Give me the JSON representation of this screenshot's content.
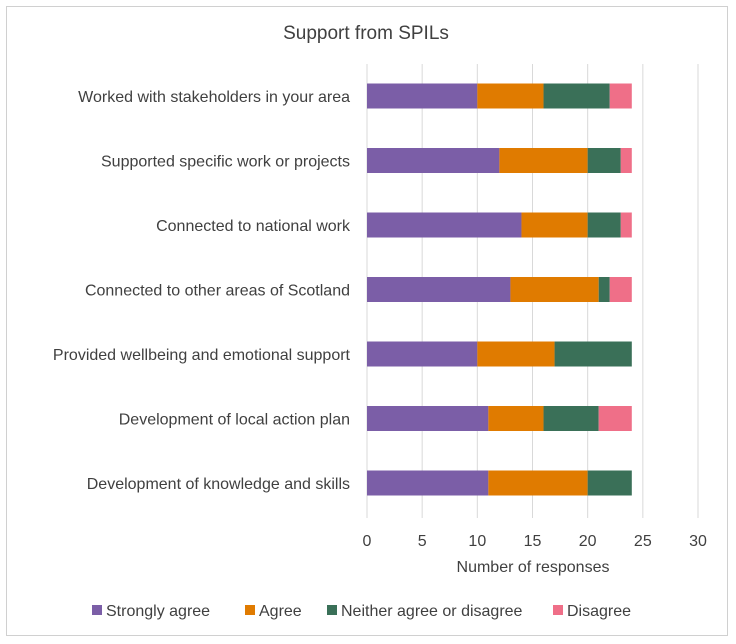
{
  "chart_data": {
    "type": "bar",
    "orientation": "horizontal",
    "stacked": true,
    "title": "Support from SPILs",
    "xlabel": "Number of responses",
    "ylabel": "",
    "xlim": [
      0,
      30
    ],
    "xticks": [
      0,
      5,
      10,
      15,
      20,
      25,
      30
    ],
    "grid": true,
    "legend_position": "bottom",
    "categories": [
      "Worked with stakeholders in your area",
      "Supported specific work or projects",
      "Connected to national work",
      "Connected to other areas of Scotland",
      "Provided wellbeing and emotional support",
      "Development of local action plan",
      "Development of knowledge and skills"
    ],
    "series": [
      {
        "name": "Strongly agree",
        "color": "#7b5ea7",
        "values": [
          10,
          12,
          14,
          13,
          10,
          11,
          11
        ]
      },
      {
        "name": "Agree",
        "color": "#e07b00",
        "values": [
          6,
          8,
          6,
          8,
          7,
          5,
          9
        ]
      },
      {
        "name": "Neither agree or disagree",
        "color": "#3a7058",
        "values": [
          6,
          3,
          3,
          1,
          7,
          5,
          4
        ]
      },
      {
        "name": "Disagree",
        "color": "#ef6f88",
        "values": [
          2,
          1,
          1,
          2,
          0,
          3,
          0
        ]
      }
    ]
  }
}
